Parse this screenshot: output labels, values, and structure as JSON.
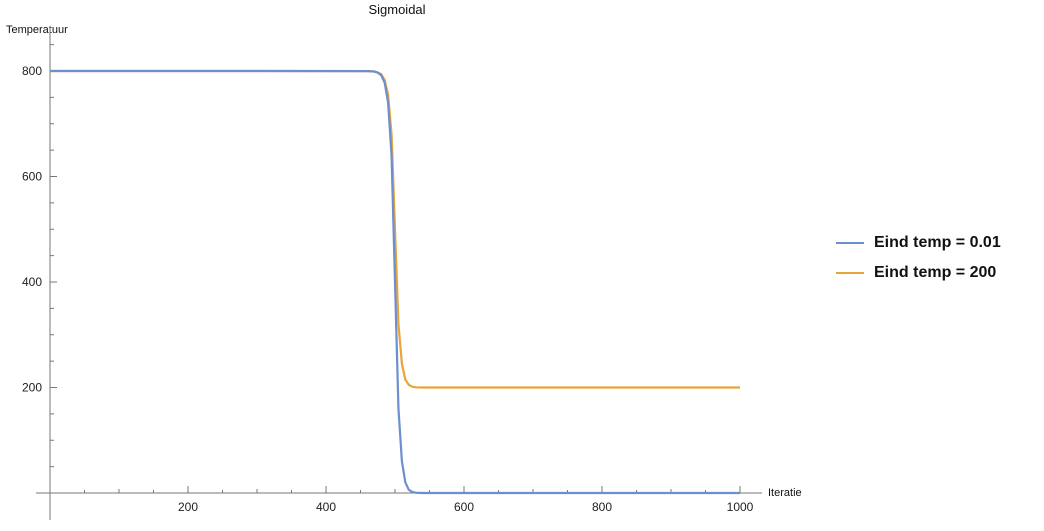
{
  "chart_data": {
    "type": "line",
    "title": "Sigmoidal",
    "xlabel": "Iteratie",
    "ylabel": "Temperatuur",
    "xlim": [
      0,
      1000
    ],
    "ylim": [
      0,
      800
    ],
    "x_ticks": [
      200,
      400,
      600,
      800,
      1000
    ],
    "y_ticks": [
      200,
      400,
      600,
      800
    ],
    "grid": false,
    "legend_position": "right",
    "series": [
      {
        "name": "Eind temp = 0.01",
        "color": "#6b8fcf",
        "points": [
          [
            0,
            800
          ],
          [
            300,
            800
          ],
          [
            460,
            799.7
          ],
          [
            470,
            799
          ],
          [
            475,
            797
          ],
          [
            480,
            792
          ],
          [
            485,
            778
          ],
          [
            490,
            740
          ],
          [
            495,
            640
          ],
          [
            500,
            400
          ],
          [
            505,
            160
          ],
          [
            510,
            60
          ],
          [
            515,
            20
          ],
          [
            520,
            6
          ],
          [
            525,
            2
          ],
          [
            530,
            0.5
          ],
          [
            540,
            0.05
          ],
          [
            560,
            0.01
          ],
          [
            700,
            0.01
          ],
          [
            1000,
            0.01
          ]
        ]
      },
      {
        "name": "Eind temp = 200",
        "color": "#e8a33a",
        "points": [
          [
            0,
            800
          ],
          [
            300,
            800
          ],
          [
            460,
            799.7
          ],
          [
            470,
            799
          ],
          [
            475,
            797
          ],
          [
            480,
            794
          ],
          [
            485,
            783
          ],
          [
            490,
            755
          ],
          [
            495,
            680
          ],
          [
            500,
            500
          ],
          [
            505,
            320
          ],
          [
            510,
            245
          ],
          [
            515,
            215
          ],
          [
            520,
            205
          ],
          [
            525,
            201.5
          ],
          [
            530,
            200.4
          ],
          [
            540,
            200.05
          ],
          [
            560,
            200
          ],
          [
            700,
            200
          ],
          [
            1000,
            200
          ]
        ]
      }
    ]
  }
}
